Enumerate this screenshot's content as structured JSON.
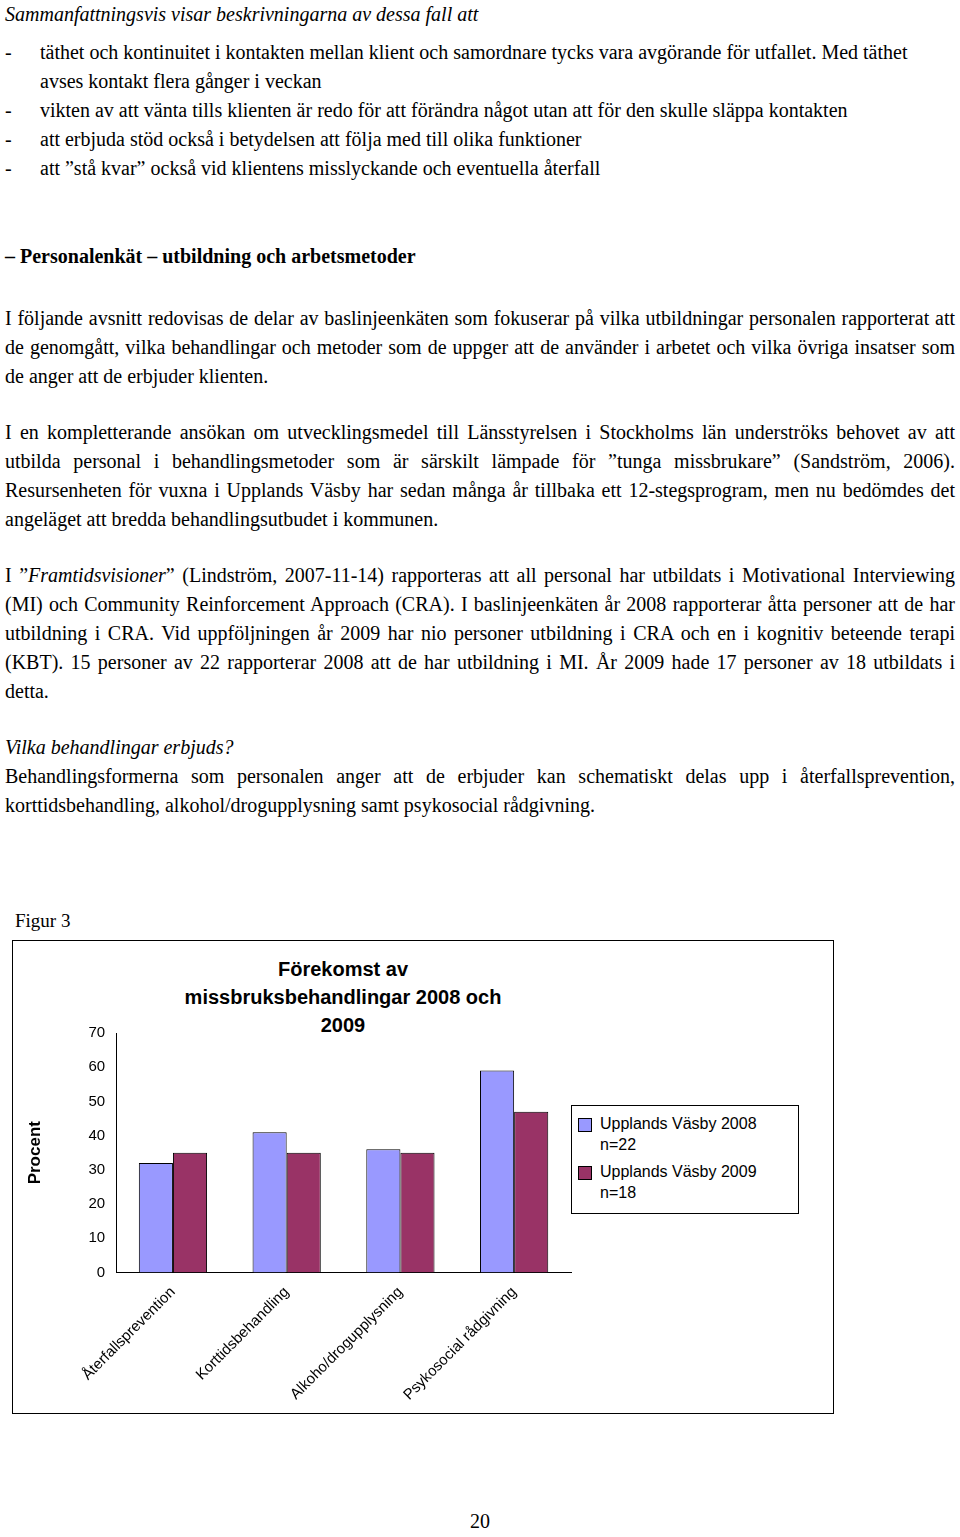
{
  "intro": "Sammanfattningsvis visar beskrivningarna av dessa fall att",
  "bullet_marker": "-",
  "bullets": [
    "täthet och kontinuitet i kontakten mellan klient och samordnare tycks vara avgörande för utfallet. Med täthet avses kontakt flera gånger i veckan",
    "vikten av att vänta tills klienten är redo för att förändra något utan att för den skulle släppa kontakten",
    "att erbjuda stöd också i betydelsen att följa med till olika funktioner",
    "att ”stå kvar” också vid klientens misslyckande och eventuella återfall"
  ],
  "heading": "– Personalenkät – utbildning och arbetsmetoder",
  "paragraphs": [
    [
      {
        "text": "I följande avsnitt redovisas de delar av baslinjeenkäten som fokuserar på vilka utbildningar personalen rapporterat att de genomgått, vilka behandlingar och metoder som de uppger att de använder i arbetet och vilka övriga insatser som de anger att de erbjuder klienten."
      }
    ],
    [
      {
        "text": "I en kompletterande ansökan om utvecklingsmedel till Länsstyrelsen i Stockholms län underströks behovet av att utbilda personal i behandlingsmetoder som är särskilt lämpade för ”tunga missbrukare” (Sandström, 2006). Resursenheten för vuxna i Upplands Väsby har sedan många år tillbaka ett 12-stegsprogram, men nu bedömdes det angeläget att bredda behandlingsutbudet i kommunen."
      }
    ],
    [
      {
        "text": "I ”"
      },
      {
        "text": "Framtidsvisioner",
        "italic": true
      },
      {
        "text": "” (Lindström, 2007-11-14) rapporteras att all personal har utbildats i Motivational Interviewing (MI) och Community Reinforcement Approach (CRA). I baslinjeenkäten år 2008 rapporterar åtta personer att de har utbildning i CRA. Vid uppföljningen år 2009 har nio personer utbildning i CRA och en i kognitiv beteende terapi (KBT). 15 personer av 22 rapporterar 2008 att de har utbildning i MI. År 2009 hade 17 personer av 18 utbildats i detta."
      }
    ]
  ],
  "subheading": "Vilka behandlingar erbjuds?",
  "closing_paragraph": "Behandlingsformerna som personalen anger att de erbjuder kan schematiskt delas upp i återfallsprevention, korttidsbehandling, alkohol/drogupplysning samt psykosocial rådgivning.",
  "figure_caption": "Figur 3",
  "chart_data": {
    "type": "bar",
    "title": "Förekomst av missbruksbehandlingar 2008 och 2009",
    "y_label": "Procent",
    "categories": [
      "Återfallsprevention",
      "Korttidsbehandling",
      "Alkoho/drogupplysning",
      "Psykosocial rådgivning"
    ],
    "series": [
      {
        "name": "Upplands Väsby 2008 n=22",
        "color": "#9999ff",
        "values": [
          32,
          41,
          36,
          59
        ]
      },
      {
        "name": "Upplands Väsby 2009 n=18",
        "color": "#993366",
        "values": [
          35,
          35,
          35,
          47
        ]
      }
    ],
    "ylim": [
      0,
      70
    ],
    "yticks": [
      0,
      10,
      20,
      30,
      40,
      50,
      60,
      70
    ],
    "grid": false,
    "legend": "right"
  },
  "page_number": "20"
}
